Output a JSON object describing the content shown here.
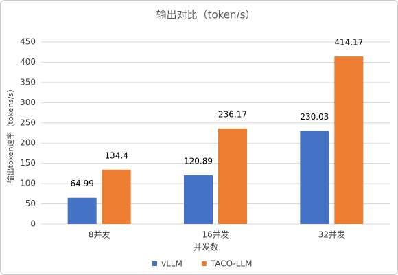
{
  "chart_data": {
    "type": "bar",
    "title": "输出对比（token/s）",
    "x_label": "并发数",
    "y_label": "输出token速率（tokens/s）",
    "categories": [
      "8并发",
      "16并发",
      "32并发"
    ],
    "series": [
      {
        "name": "vLLM",
        "color": "#4472c4",
        "values": [
          64.99,
          120.89,
          230.03
        ]
      },
      {
        "name": "TACO-LLM",
        "color": "#ed7d31",
        "values": [
          134.4,
          236.17,
          414.17
        ]
      }
    ],
    "ylim": [
      0,
      450
    ],
    "yticks": [
      0,
      50,
      100,
      150,
      200,
      250,
      300,
      350,
      400,
      450
    ],
    "grid": true,
    "legend": "bottom"
  }
}
